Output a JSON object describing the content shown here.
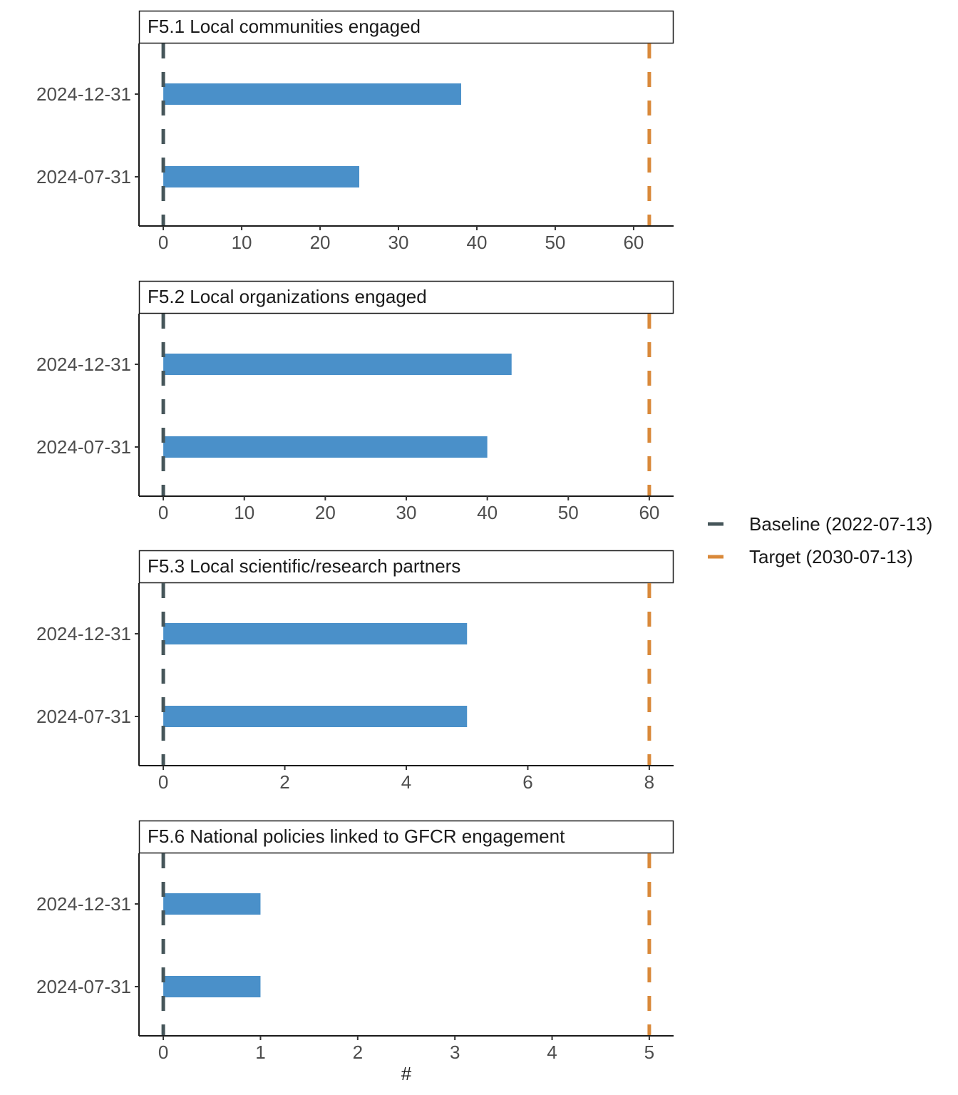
{
  "chart_data": {
    "type": "bar",
    "orientation": "horizontal",
    "categories": [
      "2024-12-31",
      "2024-07-31"
    ],
    "xlabel": "#",
    "colors": {
      "bar": "#4a90c9",
      "baseline": "#46565a",
      "target": "#d9893a"
    },
    "legend": {
      "placement": "right",
      "items": [
        {
          "key": "baseline",
          "label": "Baseline (2022-07-13)"
        },
        {
          "key": "target",
          "label": "Target (2030-07-13)"
        }
      ]
    },
    "panels": [
      {
        "title": "F5.1 Local communities engaged",
        "values": [
          38,
          25
        ],
        "baseline": 0,
        "target": 62,
        "xlim": [
          -3.1,
          65.1
        ],
        "xticks": [
          0,
          10,
          20,
          30,
          40,
          50,
          60
        ]
      },
      {
        "title": "F5.2 Local organizations engaged",
        "values": [
          43,
          40
        ],
        "baseline": 0,
        "target": 60,
        "xlim": [
          -3.0,
          63.0
        ],
        "xticks": [
          0,
          10,
          20,
          30,
          40,
          50,
          60
        ]
      },
      {
        "title": "F5.3 Local scientific/research partners",
        "values": [
          5,
          5
        ],
        "baseline": 0,
        "target": 8,
        "xlim": [
          -0.4,
          8.4
        ],
        "xticks": [
          0,
          2,
          4,
          6,
          8
        ]
      },
      {
        "title": "F5.6 National policies linked to GFCR engagement",
        "values": [
          1,
          1
        ],
        "baseline": 0,
        "target": 5,
        "xlim": [
          -0.25,
          5.25
        ],
        "xticks": [
          0,
          1,
          2,
          3,
          4,
          5
        ]
      }
    ]
  }
}
